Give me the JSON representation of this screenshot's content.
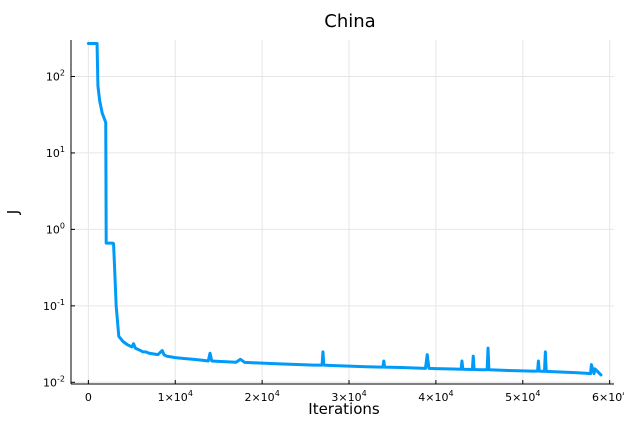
{
  "chart_data": {
    "type": "line",
    "title": "China",
    "xlabel": "Iterations",
    "ylabel": "J",
    "yscale": "log",
    "grid": true,
    "legend": "none",
    "xlim": [
      -2000,
      60500
    ],
    "ylim": [
      0.0095,
      300
    ],
    "x_ticks": [
      {
        "value": 0,
        "base": "0",
        "exp": ""
      },
      {
        "value": 10000,
        "base": "1×10",
        "exp": "4"
      },
      {
        "value": 20000,
        "base": "2×10",
        "exp": "4"
      },
      {
        "value": 30000,
        "base": "3×10",
        "exp": "4"
      },
      {
        "value": 40000,
        "base": "4×10",
        "exp": "4"
      },
      {
        "value": 50000,
        "base": "5×10",
        "exp": "4"
      },
      {
        "value": 60000,
        "base": "6×10",
        "exp": "4"
      }
    ],
    "y_ticks": [
      {
        "value": 0.01,
        "base": "10",
        "exp": "-2"
      },
      {
        "value": 0.1,
        "base": "10",
        "exp": "-1"
      },
      {
        "value": 1,
        "base": "10",
        "exp": "0"
      },
      {
        "value": 10,
        "base": "10",
        "exp": "1"
      },
      {
        "value": 100,
        "base": "10",
        "exp": "2"
      }
    ],
    "series": [
      {
        "color": "#009af9",
        "x": [
          0,
          1000,
          1100,
          1300,
          1600,
          2000,
          2050,
          2800,
          2900,
          3200,
          3500,
          4000,
          4500,
          5000,
          5200,
          5400,
          6000,
          6300,
          6600,
          7000,
          8000,
          8500,
          8700,
          9000,
          10000,
          11000,
          12000,
          13000,
          13800,
          14000,
          14200,
          15000,
          17000,
          17500,
          18000,
          20000,
          22000,
          24000,
          26000,
          26900,
          27000,
          27100,
          28000,
          30000,
          32000,
          33900,
          34000,
          34100,
          36000,
          38000,
          38800,
          39000,
          39200,
          40000,
          42000,
          42900,
          43000,
          43100,
          44200,
          44300,
          44400,
          45000,
          45900,
          46000,
          46100,
          48000,
          50000,
          51000,
          51700,
          51800,
          51900,
          52500,
          52600,
          52700,
          54000,
          56000,
          57500,
          57800,
          57900,
          58200,
          58300,
          59000
        ],
        "y": [
          270,
          270,
          75,
          48,
          33,
          25,
          0.66,
          0.66,
          0.65,
          0.1,
          0.04,
          0.034,
          0.031,
          0.029,
          0.032,
          0.028,
          0.026,
          0.025,
          0.025,
          0.024,
          0.023,
          0.026,
          0.023,
          0.022,
          0.021,
          0.0205,
          0.02,
          0.0195,
          0.019,
          0.024,
          0.019,
          0.0188,
          0.0183,
          0.02,
          0.0182,
          0.0178,
          0.0174,
          0.0171,
          0.0168,
          0.0168,
          0.025,
          0.0168,
          0.0166,
          0.0163,
          0.016,
          0.0158,
          0.019,
          0.0158,
          0.0156,
          0.0153,
          0.0152,
          0.023,
          0.0152,
          0.0151,
          0.0149,
          0.0148,
          0.019,
          0.0148,
          0.0147,
          0.022,
          0.0147,
          0.0146,
          0.0146,
          0.028,
          0.0146,
          0.0143,
          0.0141,
          0.014,
          0.014,
          0.019,
          0.014,
          0.0139,
          0.025,
          0.0139,
          0.0137,
          0.0134,
          0.0131,
          0.013,
          0.017,
          0.013,
          0.015,
          0.0125
        ]
      }
    ]
  }
}
